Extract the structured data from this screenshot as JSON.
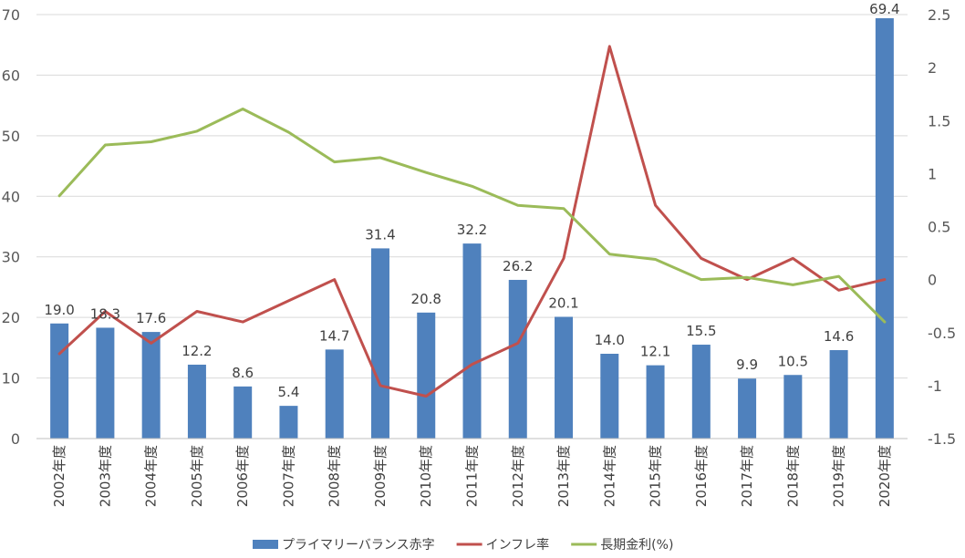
{
  "chart_data": {
    "type": "bar",
    "categories": [
      "2002年度",
      "2003年度",
      "2004年度",
      "2005年度",
      "2006年度",
      "2007年度",
      "2008年度",
      "2009年度",
      "2010年度",
      "2011年度",
      "2012年度",
      "2013年度",
      "2014年度",
      "2015年度",
      "2016年度",
      "2017年度",
      "2018年度",
      "2019年度",
      "2020年度"
    ],
    "series": [
      {
        "name": "プライマリーバランス赤字",
        "type": "bar",
        "axis": "left",
        "color": "#4f81bd",
        "values": [
          19.0,
          18.3,
          17.6,
          12.2,
          8.6,
          5.4,
          14.7,
          31.4,
          20.8,
          32.2,
          26.2,
          20.1,
          14.0,
          12.1,
          15.5,
          9.9,
          10.5,
          14.6,
          69.4
        ],
        "labels": [
          "19.0",
          "18.3",
          "17.6",
          "12.2",
          "8.6",
          "5.4",
          "14.7",
          "31.4",
          "20.8",
          "32.2",
          "26.2",
          "20.1",
          "14.0",
          "12.1",
          "15.5",
          "9.9",
          "10.5",
          "14.6",
          "69.4"
        ]
      },
      {
        "name": "インフレ率",
        "type": "line",
        "axis": "right",
        "color": "#c0504d",
        "values": [
          -0.7,
          -0.3,
          -0.6,
          -0.3,
          -0.4,
          -0.2,
          0.0,
          -1.0,
          -1.1,
          -0.8,
          -0.6,
          0.2,
          2.2,
          0.7,
          0.2,
          0.0,
          0.2,
          -0.1,
          0.0
        ]
      },
      {
        "name": "長期金利(%)",
        "type": "line",
        "axis": "right",
        "color": "#9bbb59",
        "values": [
          0.79,
          1.27,
          1.3,
          1.4,
          1.61,
          1.39,
          1.11,
          1.15,
          1.01,
          0.88,
          0.7,
          0.67,
          0.24,
          0.19,
          0.0,
          0.02,
          -0.05,
          0.03,
          -0.4
        ]
      }
    ],
    "y_left": {
      "min": 0,
      "max": 70,
      "step": 10,
      "ticks": [
        "0",
        "10",
        "20",
        "30",
        "40",
        "50",
        "60",
        "70"
      ]
    },
    "y_right": {
      "min": -1.5,
      "max": 2.5,
      "step": 0.5,
      "ticks": [
        "-1.5",
        "-1",
        "-0.5",
        "0",
        "0.5",
        "1",
        "1.5",
        "2",
        "2.5"
      ]
    },
    "grid": true,
    "legend": "bottom"
  }
}
